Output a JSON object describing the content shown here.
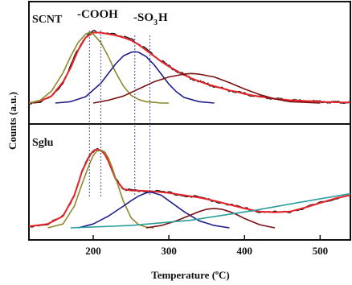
{
  "chart_data": [
    {
      "type": "line",
      "panel_label": "SCNT",
      "annotations": [
        "-COOH",
        "-SO",
        "3",
        "H"
      ],
      "x_range": [
        115,
        540
      ],
      "y_range": [
        0,
        1.12
      ],
      "series": [
        {
          "color": "#1a1a1a",
          "role": "measured",
          "x": [
            115,
            130,
            145,
            160,
            170,
            180,
            190,
            200,
            210,
            220,
            230,
            240,
            250,
            260,
            270,
            280,
            290,
            300,
            310,
            320,
            330,
            340,
            350,
            360,
            370,
            380,
            390,
            400,
            410,
            420,
            430,
            440,
            450,
            460,
            470,
            480,
            490,
            500,
            510,
            520,
            530,
            540
          ],
          "y": [
            0,
            0.02,
            0.09,
            0.29,
            0.52,
            0.77,
            0.95,
            1.02,
            1.0,
            0.98,
            0.97,
            0.94,
            0.9,
            0.84,
            0.76,
            0.68,
            0.6,
            0.52,
            0.46,
            0.4,
            0.35,
            0.31,
            0.27,
            0.24,
            0.21,
            0.18,
            0.16,
            0.13,
            0.11,
            0.09,
            0.08,
            0.06,
            0.05,
            0.04,
            0.035,
            0.03,
            0.025,
            0.02,
            0.015,
            0.012,
            0.01,
            0.008
          ]
        },
        {
          "color": "#e8232a",
          "role": "fit",
          "x": [
            115,
            130,
            145,
            160,
            170,
            180,
            190,
            200,
            210,
            220,
            230,
            240,
            250,
            260,
            270,
            280,
            290,
            300,
            310,
            320,
            330,
            340,
            350,
            360,
            370,
            380,
            390,
            400,
            410,
            420,
            430,
            440,
            450,
            460,
            470,
            480,
            490,
            500,
            510,
            520,
            530,
            540
          ],
          "y": [
            0,
            0.03,
            0.1,
            0.3,
            0.5,
            0.75,
            0.93,
            1.0,
            1.0,
            0.98,
            0.96,
            0.93,
            0.89,
            0.83,
            0.75,
            0.67,
            0.59,
            0.52,
            0.46,
            0.4,
            0.35,
            0.31,
            0.27,
            0.24,
            0.21,
            0.18,
            0.16,
            0.13,
            0.11,
            0.09,
            0.08,
            0.06,
            0.05,
            0.04,
            0.035,
            0.03,
            0.025,
            0.02,
            0.015,
            0.012,
            0.01,
            0.008
          ]
        },
        {
          "color": "#8c8a2b",
          "role": "component",
          "x": [
            115,
            130,
            145,
            160,
            170,
            180,
            190,
            195,
            200,
            210,
            220,
            230,
            240,
            250,
            260,
            270,
            280,
            290,
            300
          ],
          "y": [
            0,
            0.04,
            0.17,
            0.43,
            0.66,
            0.86,
            0.98,
            1.0,
            0.98,
            0.86,
            0.66,
            0.43,
            0.24,
            0.11,
            0.05,
            0.02,
            0.01,
            0,
            0
          ]
        },
        {
          "color": "#1f1f8a",
          "role": "component",
          "x": [
            150,
            170,
            190,
            210,
            220,
            230,
            240,
            250,
            255,
            260,
            270,
            280,
            290,
            300,
            310,
            320,
            340,
            360
          ],
          "y": [
            0,
            0.02,
            0.09,
            0.28,
            0.42,
            0.56,
            0.67,
            0.72,
            0.73,
            0.72,
            0.66,
            0.55,
            0.41,
            0.27,
            0.16,
            0.08,
            0.02,
            0
          ]
        },
        {
          "color": "#7a1010",
          "role": "component",
          "x": [
            200,
            220,
            240,
            260,
            280,
            300,
            320,
            330,
            340,
            360,
            380,
            400,
            420,
            440,
            460,
            480,
            500
          ],
          "y": [
            0,
            0.04,
            0.1,
            0.2,
            0.3,
            0.37,
            0.41,
            0.42,
            0.41,
            0.37,
            0.29,
            0.2,
            0.12,
            0.06,
            0.02,
            0.01,
            0
          ]
        }
      ]
    },
    {
      "type": "line",
      "panel_label": "Sglu",
      "x_range": [
        115,
        540
      ],
      "y_range": [
        0,
        1.12
      ],
      "series": [
        {
          "color": "#1a1a1a",
          "role": "measured",
          "x": [
            115,
            140,
            160,
            175,
            185,
            195,
            200,
            205,
            210,
            215,
            220,
            225,
            230,
            240,
            250,
            260,
            280,
            300,
            320,
            340,
            360,
            380,
            400,
            420,
            440,
            460,
            480,
            500,
            520,
            540
          ],
          "y": [
            0.02,
            0.05,
            0.15,
            0.42,
            0.72,
            0.93,
            0.99,
            1.01,
            1.0,
            0.95,
            0.86,
            0.74,
            0.62,
            0.5,
            0.48,
            0.48,
            0.47,
            0.45,
            0.42,
            0.39,
            0.35,
            0.3,
            0.25,
            0.21,
            0.2,
            0.21,
            0.26,
            0.32,
            0.38,
            0.42
          ]
        },
        {
          "color": "#e8232a",
          "role": "fit",
          "x": [
            115,
            140,
            160,
            175,
            185,
            195,
            200,
            205,
            210,
            215,
            220,
            225,
            230,
            240,
            250,
            260,
            280,
            300,
            320,
            340,
            360,
            380,
            400,
            420,
            440,
            460,
            480,
            500,
            520,
            540
          ],
          "y": [
            0.02,
            0.05,
            0.15,
            0.42,
            0.72,
            0.93,
            0.99,
            1.01,
            1.0,
            0.95,
            0.86,
            0.74,
            0.62,
            0.5,
            0.48,
            0.48,
            0.47,
            0.45,
            0.42,
            0.39,
            0.35,
            0.3,
            0.25,
            0.21,
            0.2,
            0.21,
            0.26,
            0.32,
            0.38,
            0.42
          ]
        },
        {
          "color": "#8c8a2b",
          "role": "component",
          "x": [
            140,
            160,
            175,
            185,
            195,
            200,
            205,
            210,
            215,
            220,
            225,
            230,
            240,
            250,
            260,
            270,
            280
          ],
          "y": [
            0,
            0.05,
            0.28,
            0.56,
            0.82,
            0.93,
            0.99,
            1.0,
            0.98,
            0.9,
            0.78,
            0.63,
            0.34,
            0.13,
            0.04,
            0.01,
            0
          ]
        },
        {
          "color": "#1f1f8a",
          "role": "component",
          "x": [
            180,
            200,
            220,
            240,
            250,
            260,
            270,
            275,
            280,
            290,
            300,
            320,
            340,
            360,
            380
          ],
          "y": [
            0,
            0.05,
            0.15,
            0.28,
            0.35,
            0.41,
            0.45,
            0.46,
            0.45,
            0.42,
            0.35,
            0.21,
            0.09,
            0.03,
            0
          ]
        },
        {
          "color": "#7a1010",
          "role": "component",
          "x": [
            270,
            290,
            310,
            330,
            340,
            350,
            360,
            370,
            380,
            390,
            400,
            420,
            440
          ],
          "y": [
            0,
            0.03,
            0.09,
            0.17,
            0.21,
            0.24,
            0.25,
            0.24,
            0.21,
            0.17,
            0.12,
            0.04,
            0
          ]
        },
        {
          "color": "#2a9d9d",
          "role": "component",
          "x": [
            170,
            250,
            330,
            410,
            480,
            540
          ],
          "y": [
            0,
            0.03,
            0.1,
            0.22,
            0.34,
            0.44
          ]
        }
      ]
    }
  ],
  "axes": {
    "ylabel": "Counts (a.u.)",
    "xlabel_main": "Temperature (",
    "xlabel_degree": "o",
    "xlabel_unit": "C)",
    "xticks": [
      200,
      300,
      400,
      500
    ],
    "xtick_labels": [
      "200",
      "300",
      "400",
      "500"
    ]
  },
  "markers": {
    "color": "#4a4a9a",
    "x_values": [
      195,
      210,
      255,
      275
    ]
  },
  "colors": {
    "frame": "#111111",
    "measured": "#1a1a1a",
    "fit": "#e8232a",
    "peak1": "#8c8a2b",
    "peak2": "#1f1f8a",
    "peak3": "#7a1010",
    "baseline": "#2a9d9d"
  }
}
